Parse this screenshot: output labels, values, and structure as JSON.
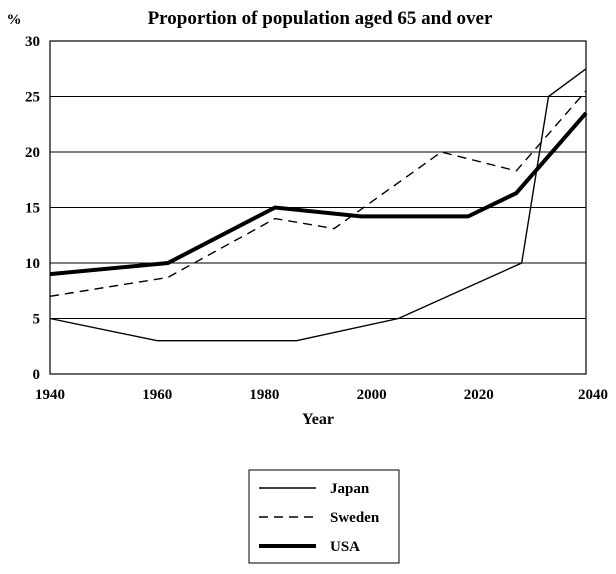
{
  "chart_data": {
    "type": "line",
    "title": "Proportion of population aged 65 and over",
    "ylabel": "%",
    "xlabel": "Year",
    "xlim": [
      1940,
      2040
    ],
    "ylim": [
      0,
      30
    ],
    "x_ticks": [
      "1940",
      "1960",
      "1980",
      "2000",
      "2020",
      "2040"
    ],
    "y_ticks": [
      "0",
      "5",
      "10",
      "15",
      "20",
      "25",
      "30"
    ],
    "grid": "horizontal",
    "legend_position": "bottom-center",
    "series": [
      {
        "name": "Japan",
        "style": "thin-solid",
        "color": "#000000",
        "points": [
          [
            1940,
            5
          ],
          [
            1960,
            3
          ],
          [
            1986,
            3
          ],
          [
            2005,
            5
          ],
          [
            2028,
            10
          ],
          [
            2033,
            25
          ],
          [
            2040,
            27.5
          ]
        ]
      },
      {
        "name": "Sweden",
        "style": "dashed",
        "color": "#000000",
        "points": [
          [
            1940,
            7
          ],
          [
            1962,
            8.7
          ],
          [
            1982,
            14
          ],
          [
            1993,
            13.1
          ],
          [
            2013,
            20
          ],
          [
            2027,
            18.3
          ],
          [
            2040,
            25.5
          ]
        ]
      },
      {
        "name": "USA",
        "style": "thick-solid",
        "color": "#000000",
        "points": [
          [
            1940,
            9
          ],
          [
            1962,
            10
          ],
          [
            1982,
            15
          ],
          [
            1998,
            14.2
          ],
          [
            2018,
            14.2
          ],
          [
            2027,
            16.3
          ],
          [
            2040,
            23.5
          ]
        ]
      }
    ]
  }
}
